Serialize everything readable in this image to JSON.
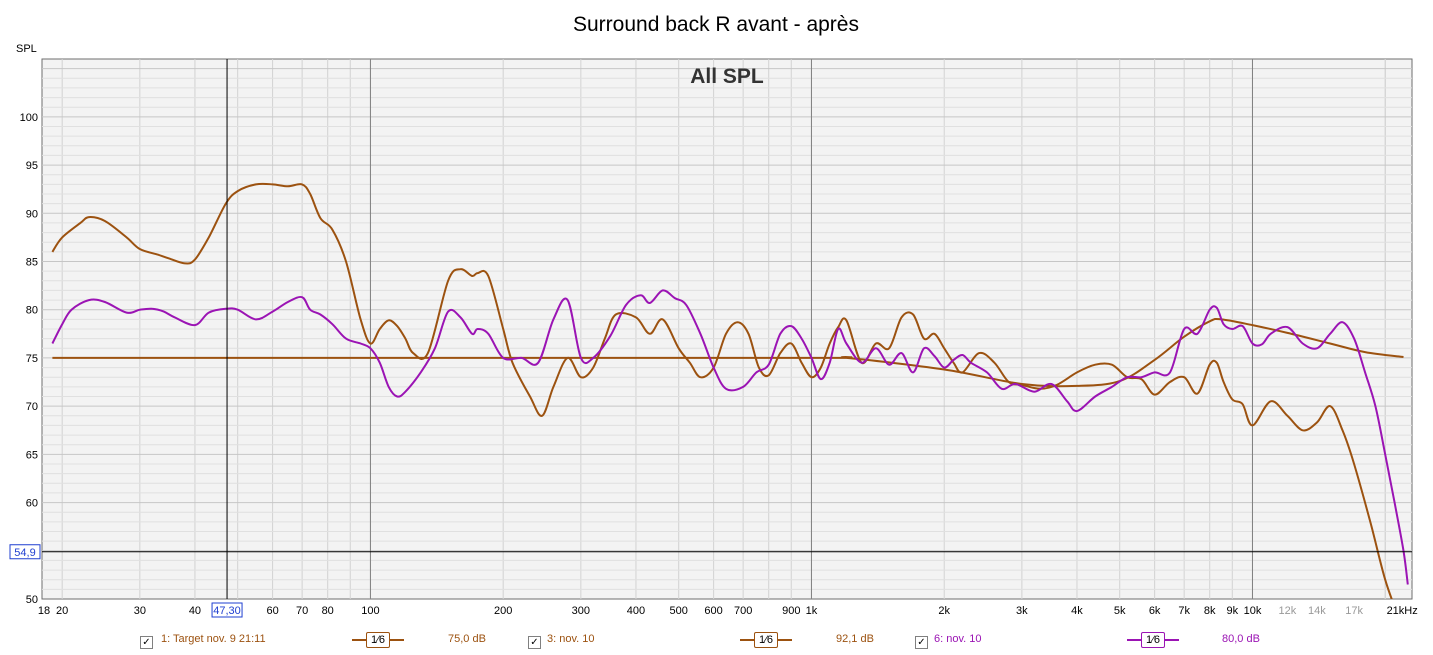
{
  "chart_data": {
    "type": "line",
    "title": "Surround back R avant - après",
    "annotation": "All SPL",
    "ylabel": "SPL",
    "xunit": "Hz",
    "xscale": "log",
    "xlim": [
      18,
      23000
    ],
    "ylim": [
      50,
      106
    ],
    "grid": true,
    "xticks": [
      {
        "v": 18,
        "l": "18"
      },
      {
        "v": 20,
        "l": "20"
      },
      {
        "v": 30,
        "l": "30"
      },
      {
        "v": 40,
        "l": "40"
      },
      {
        "v": 47.3,
        "l": "47,30"
      },
      {
        "v": 60,
        "l": "60"
      },
      {
        "v": 70,
        "l": "70"
      },
      {
        "v": 80,
        "l": "80"
      },
      {
        "v": 100,
        "l": "100"
      },
      {
        "v": 200,
        "l": "200"
      },
      {
        "v": 300,
        "l": "300"
      },
      {
        "v": 400,
        "l": "400"
      },
      {
        "v": 500,
        "l": "500"
      },
      {
        "v": 600,
        "l": "600"
      },
      {
        "v": 700,
        "l": "700"
      },
      {
        "v": 900,
        "l": "900"
      },
      {
        "v": 1000,
        "l": "1k"
      },
      {
        "v": 2000,
        "l": "2k"
      },
      {
        "v": 3000,
        "l": "3k"
      },
      {
        "v": 4000,
        "l": "4k"
      },
      {
        "v": 5000,
        "l": "5k"
      },
      {
        "v": 6000,
        "l": "6k"
      },
      {
        "v": 7000,
        "l": "7k"
      },
      {
        "v": 8000,
        "l": "8k"
      },
      {
        "v": 9000,
        "l": "9k"
      },
      {
        "v": 10000,
        "l": "10k"
      },
      {
        "v": 12000,
        "l": "12k",
        "muted": true
      },
      {
        "v": 14000,
        "l": "14k",
        "muted": true
      },
      {
        "v": 17000,
        "l": "17k",
        "muted": true
      },
      {
        "v": 21000,
        "l": "21kHz"
      }
    ],
    "yticks": [
      50,
      55,
      60,
      65,
      70,
      75,
      80,
      85,
      90,
      95,
      100
    ],
    "cursor": {
      "x": 47.3,
      "x_label": "47,30",
      "y": 54.9,
      "y_label": "54,9"
    },
    "series": [
      {
        "name": "1: Target nov. 9 21:11",
        "smoothing": "1⁄6",
        "level": "75,0 dB",
        "color": "#9c5210",
        "x": [
          19,
          100,
          1000,
          1200,
          2000,
          3000,
          4000,
          5000,
          6000,
          7000,
          8000,
          8500,
          10000,
          12000,
          15000,
          18000,
          22000
        ],
        "y": [
          75,
          75,
          75,
          75,
          73.8,
          72.3,
          72.1,
          72.6,
          74.8,
          77.2,
          78.8,
          79,
          78.4,
          77.6,
          76.5,
          75.6,
          75.1
        ]
      },
      {
        "name": "3: nov. 10",
        "smoothing": "1⁄6",
        "level": "92,1 dB",
        "color": "#9c5210",
        "x": [
          19,
          20,
          22,
          23,
          25,
          28,
          30,
          33,
          35,
          38,
          40,
          43,
          47,
          50,
          55,
          60,
          65,
          70,
          73,
          77,
          82,
          88,
          95,
          100,
          105,
          110,
          115,
          120,
          125,
          135,
          150,
          160,
          170,
          175,
          185,
          200,
          210,
          230,
          245,
          260,
          280,
          300,
          320,
          340,
          360,
          400,
          430,
          460,
          500,
          530,
          560,
          600,
          640,
          680,
          720,
          760,
          800,
          850,
          900,
          950,
          1000,
          1050,
          1100,
          1150,
          1200,
          1300,
          1400,
          1500,
          1600,
          1700,
          1800,
          1900,
          2000,
          2100,
          2200,
          2400,
          2600,
          2800,
          3000,
          3300,
          3600,
          4000,
          4400,
          4800,
          5200,
          5600,
          6000,
          6500,
          7000,
          7500,
          8000,
          8300,
          8600,
          9000,
          9500,
          10000,
          11000,
          12000,
          13000,
          14000,
          15000,
          16000,
          17000,
          18500,
          20000,
          21500,
          22500
        ],
        "y": [
          86,
          87.5,
          89,
          89.6,
          89.2,
          87.5,
          86.3,
          85.7,
          85.3,
          84.8,
          85.2,
          87.5,
          91,
          92.3,
          93,
          93,
          92.8,
          93,
          92,
          89.5,
          88.3,
          85,
          79,
          76.5,
          78,
          78.9,
          78.3,
          77,
          75.5,
          75.5,
          83,
          84.2,
          83.5,
          83.8,
          83.5,
          78,
          74.5,
          71,
          69,
          72,
          75,
          73,
          74,
          77,
          79.5,
          79.2,
          77.5,
          79,
          76,
          74.5,
          73,
          74,
          77.5,
          78.7,
          77.5,
          74,
          73.2,
          75.5,
          76.5,
          74.5,
          73,
          74,
          76.5,
          78.2,
          78.9,
          74.5,
          76.5,
          76,
          79.2,
          79.5,
          77,
          77.5,
          76,
          74.5,
          73.5,
          75.5,
          74.5,
          72.5,
          72.2,
          71.8,
          72.2,
          73.5,
          74.3,
          74.3,
          73,
          72.8,
          71.2,
          72.5,
          73,
          71.3,
          74.3,
          74.5,
          72.5,
          70.7,
          70.2,
          68,
          70.5,
          69,
          67.5,
          68.3,
          70,
          67.5,
          64,
          58,
          52,
          48,
          46
        ]
      },
      {
        "name": "6: nov. 10",
        "smoothing": "1⁄6",
        "level": "80,0 dB",
        "color": "#9b14b4",
        "x": [
          19,
          20,
          21,
          23,
          25,
          28,
          30,
          32,
          34,
          36,
          40,
          43,
          47,
          50,
          55,
          60,
          65,
          70,
          73,
          77,
          82,
          88,
          95,
          100,
          105,
          110,
          115,
          120,
          130,
          140,
          150,
          160,
          170,
          175,
          185,
          200,
          220,
          240,
          260,
          280,
          300,
          320,
          350,
          380,
          410,
          430,
          460,
          490,
          520,
          560,
          600,
          640,
          700,
          750,
          800,
          850,
          900,
          950,
          1000,
          1050,
          1100,
          1150,
          1200,
          1300,
          1400,
          1500,
          1600,
          1700,
          1800,
          1900,
          2000,
          2100,
          2200,
          2300,
          2500,
          2700,
          2900,
          3200,
          3500,
          3800,
          4000,
          4400,
          4800,
          5200,
          5600,
          6000,
          6500,
          7000,
          7500,
          8000,
          8300,
          8600,
          9000,
          9500,
          10000,
          10500,
          11000,
          12000,
          13000,
          14000,
          15000,
          16000,
          17000,
          18000,
          19000,
          20000,
          21000,
          22000,
          22500
        ],
        "y": [
          76.5,
          78.5,
          80,
          81,
          80.8,
          79.7,
          80,
          80.1,
          79.8,
          79.2,
          78.4,
          79.7,
          80.1,
          80,
          79,
          79.8,
          80.8,
          81.3,
          80,
          79.5,
          78.5,
          77,
          76.5,
          76,
          74.5,
          72,
          71,
          71.5,
          73.5,
          76,
          79.8,
          79.2,
          77.5,
          78,
          77.5,
          75,
          75,
          74.5,
          79,
          81,
          75,
          75,
          77.3,
          80.5,
          81.5,
          80.7,
          82,
          81.2,
          80.5,
          77.5,
          74,
          71.8,
          72,
          73.5,
          74.3,
          77.5,
          78.3,
          77,
          75,
          72.8,
          74.5,
          78,
          76.5,
          74.5,
          76,
          74.3,
          75.5,
          73.5,
          76,
          75.2,
          74,
          74.8,
          75.3,
          74.5,
          73.5,
          71.8,
          72.3,
          71.5,
          72.3,
          70.5,
          69.5,
          71,
          72,
          73,
          73,
          73.5,
          73.5,
          78,
          77.5,
          80,
          80.2,
          78.5,
          78,
          78.3,
          76.5,
          76.4,
          77.5,
          78.2,
          76.5,
          76,
          77.5,
          78.7,
          77,
          73.5,
          70,
          65,
          60,
          55,
          51.5
        ]
      }
    ]
  }
}
